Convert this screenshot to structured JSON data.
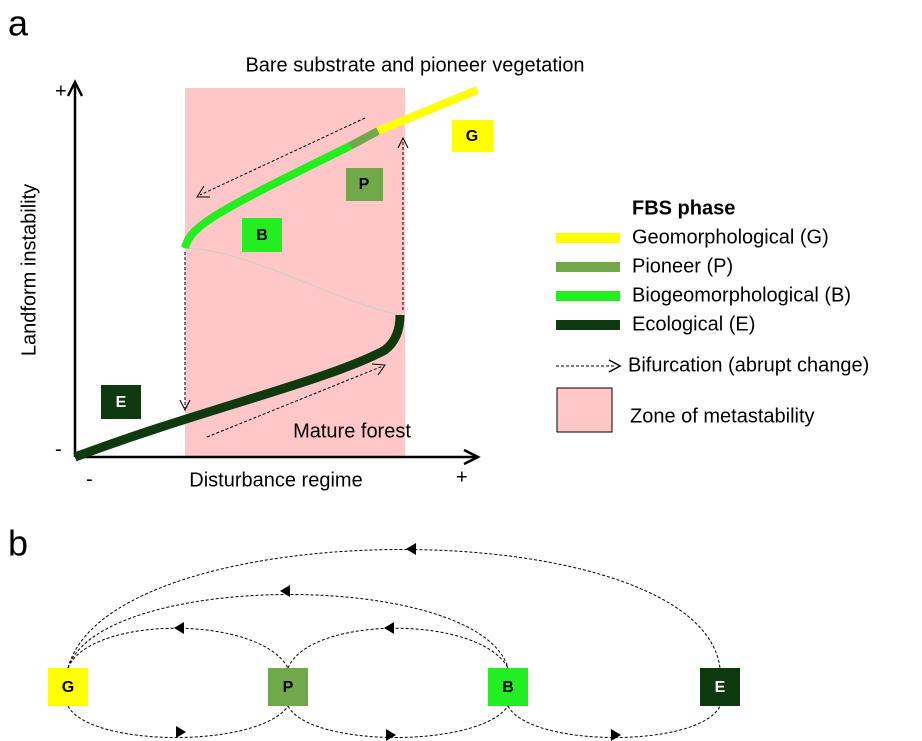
{
  "panels": {
    "a": "a",
    "b": "b"
  },
  "axes": {
    "x_label": "Disturbance regime",
    "y_label": "Landform instability",
    "x_minus": "-",
    "x_plus": "+",
    "y_minus": "-",
    "y_plus": "+"
  },
  "annotations": {
    "top": "Bare substrate and pioneer vegetation",
    "bottom": "Mature forest"
  },
  "curve_labels": [
    {
      "label": "G",
      "color": "#ffff00"
    },
    {
      "label": "P",
      "color": "#70a84a"
    },
    {
      "label": "B",
      "color": "#22ee22"
    },
    {
      "label": "E",
      "color": "#0f3a0f"
    }
  ],
  "legend": {
    "title": "FBS phase",
    "items": [
      {
        "label": "Geomorphological (G)",
        "color": "#ffff00"
      },
      {
        "label": "Pioneer (P)",
        "color": "#70a84a"
      },
      {
        "label": "Biogeomorphological (B)",
        "color": "#22ee22"
      },
      {
        "label": "Ecological (E)",
        "color": "#0f3a0f"
      }
    ],
    "bifurcation": "Bifurcation (abrupt change)",
    "zone": "Zone of metastability",
    "zone_color": "#ffc7c7"
  },
  "nodes": [
    {
      "label": "G",
      "color": "#ffff00"
    },
    {
      "label": "P",
      "color": "#70a84a"
    },
    {
      "label": "B",
      "color": "#22ee22"
    },
    {
      "label": "E",
      "color": "#0f3a0f"
    }
  ]
}
